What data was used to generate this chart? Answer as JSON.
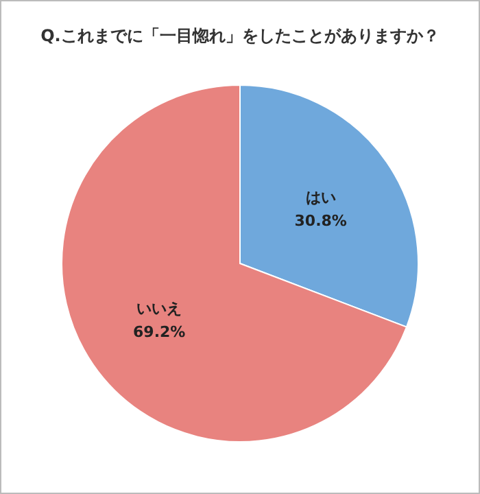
{
  "chart_data": {
    "type": "pie",
    "title": "Q.これまでに「一目惚れ」をしたことがありますか？",
    "categories": [
      "はい",
      "いいえ"
    ],
    "values": [
      30.8,
      69.2
    ],
    "colors": [
      "#6fa8dc",
      "#e8837f"
    ],
    "value_labels": [
      "30.8%",
      "69.2%"
    ]
  }
}
